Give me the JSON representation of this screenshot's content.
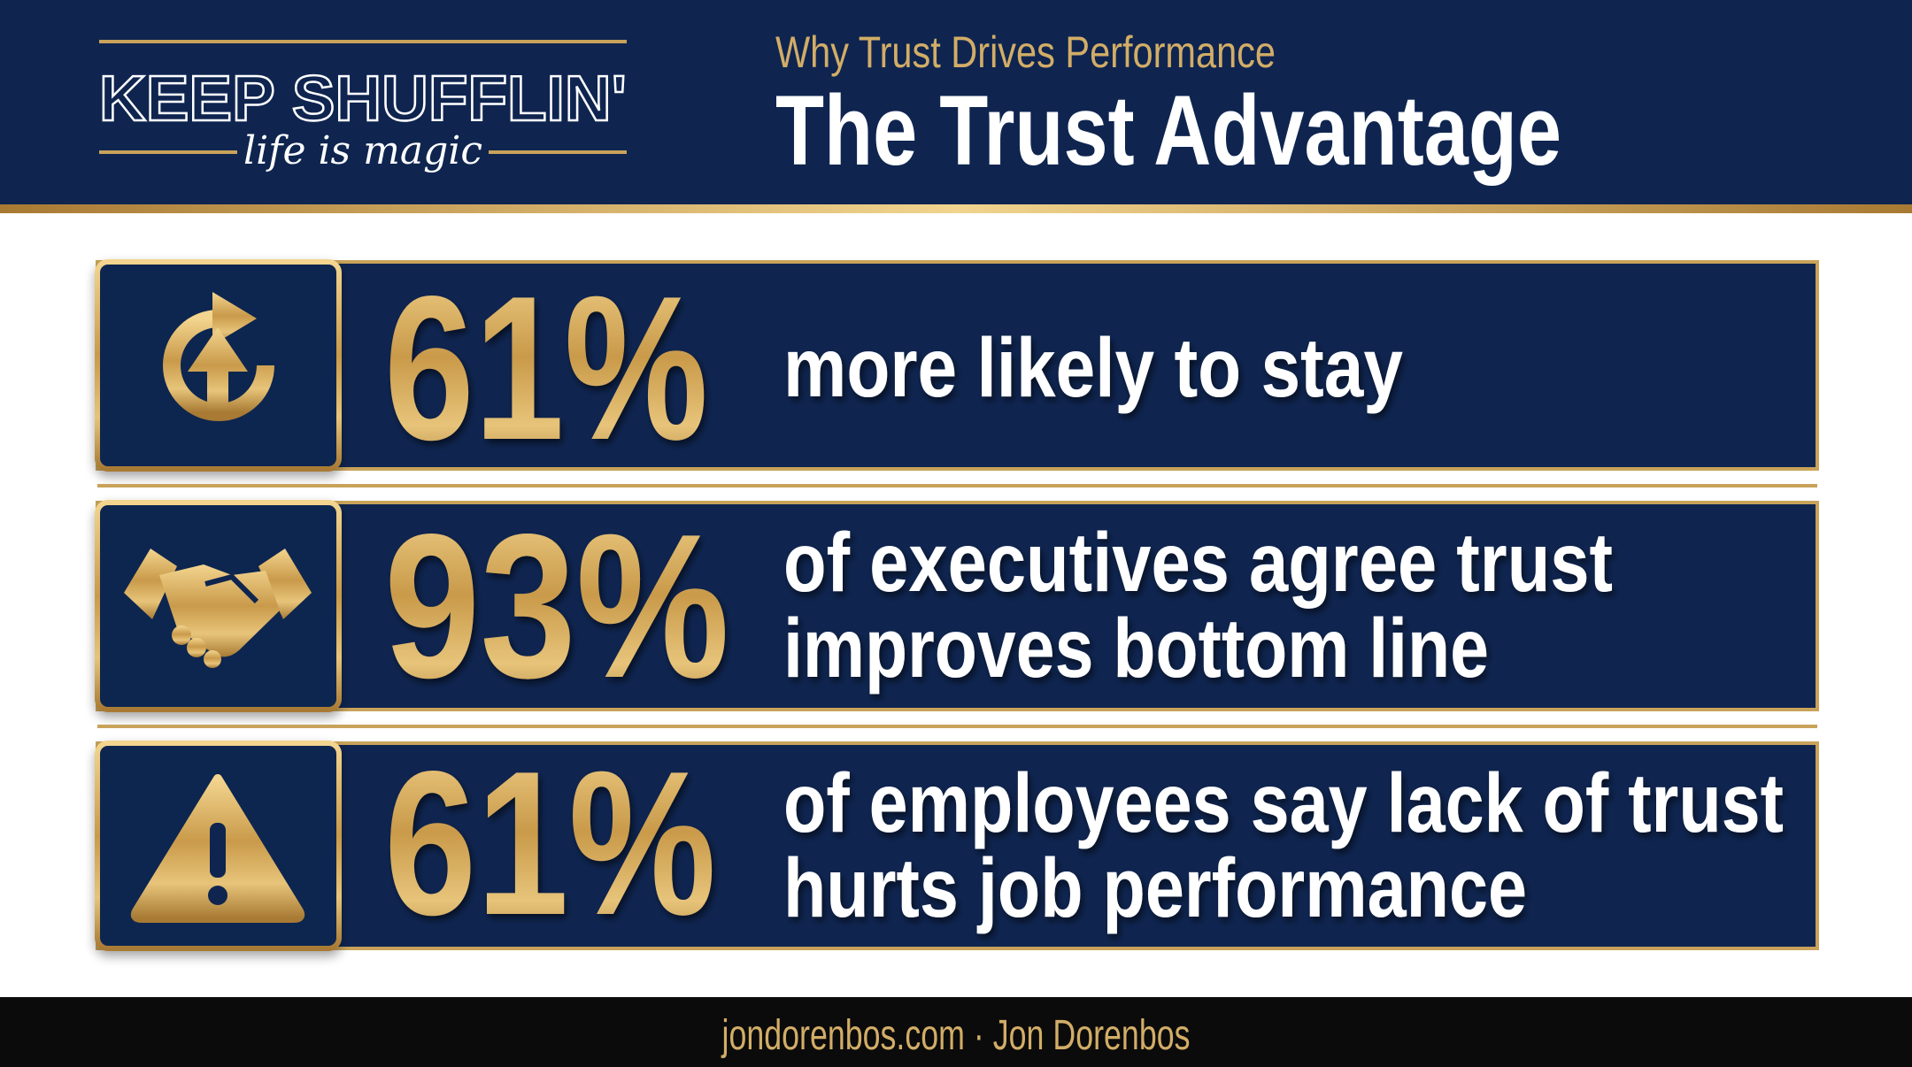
{
  "header": {
    "subtitle": "Why Trust Drives Performance",
    "title": "The Trust Advantage"
  },
  "logo": {
    "name": "KEEP SHUFFLIN'",
    "tagline": "life is magic"
  },
  "stats": [
    {
      "figure": "61%",
      "lines": [
        "more likely to stay"
      ]
    },
    {
      "figure": "93%",
      "lines": [
        "of executives agree trust",
        "improves bottom line"
      ]
    },
    {
      "figure": "61%",
      "lines": [
        "of employees say lack of trust",
        "hurts job performance"
      ]
    }
  ],
  "footer": {
    "text": "jondorenbos.com · Jon Dorenbos"
  }
}
